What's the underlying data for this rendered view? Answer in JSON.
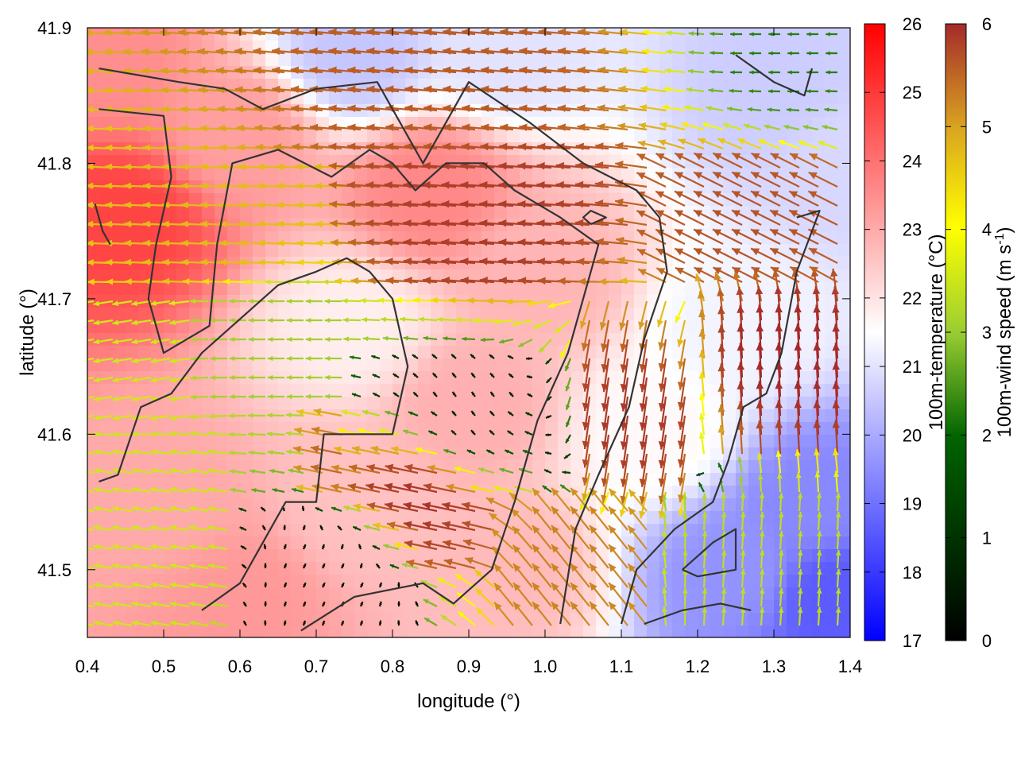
{
  "chart_data": {
    "type": "heatmap",
    "xlabel": "longitude (°)",
    "ylabel": "latitude (°)",
    "xlim": [
      0.4,
      1.4
    ],
    "ylim": [
      41.45,
      41.9
    ],
    "x_ticks": [
      "0.4",
      "0.5",
      "0.6",
      "0.7",
      "0.8",
      "0.9",
      "1.0",
      "1.1",
      "1.2",
      "1.3",
      "1.4"
    ],
    "y_ticks": [
      "41.5",
      "41.6",
      "41.7",
      "41.8",
      "41.9"
    ],
    "grid": false,
    "temperature_colorbar": {
      "label": "100m-temperature (°C)",
      "range": [
        17,
        26
      ],
      "ticks": [
        "17",
        "18",
        "19",
        "20",
        "21",
        "22",
        "23",
        "24",
        "25",
        "26"
      ],
      "colors": [
        "#0000ff",
        "#ffffff",
        "#ff0000"
      ]
    },
    "wind_colorbar": {
      "label_main": "100m-wind speed (m s",
      "label_sup": "-1",
      "label_end": ")",
      "range": [
        0,
        6
      ],
      "ticks": [
        "0",
        "1",
        "2",
        "3",
        "4",
        "5",
        "6"
      ],
      "colors": [
        "#000000",
        "#006400",
        "#9acd32",
        "#ffff00",
        "#daa520",
        "#a52a2a"
      ]
    },
    "temperature_field": [
      {
        "lon": 0.45,
        "lat": 41.76,
        "t": 24.8
      },
      {
        "lon": 0.42,
        "lat": 41.88,
        "t": 23.5
      },
      {
        "lon": 0.6,
        "lat": 41.82,
        "t": 23.2
      },
      {
        "lon": 0.85,
        "lat": 41.78,
        "t": 23.6
      },
      {
        "lon": 1.0,
        "lat": 41.72,
        "t": 22.8
      },
      {
        "lon": 0.9,
        "lat": 41.62,
        "t": 22.9
      },
      {
        "lon": 0.75,
        "lat": 41.55,
        "t": 22.6
      },
      {
        "lon": 0.5,
        "lat": 41.55,
        "t": 23.0
      },
      {
        "lon": 0.6,
        "lat": 41.48,
        "t": 23.3
      },
      {
        "lon": 0.95,
        "lat": 41.5,
        "t": 22.7
      },
      {
        "lon": 1.25,
        "lat": 41.5,
        "t": 19.6
      },
      {
        "lon": 1.35,
        "lat": 41.55,
        "t": 19.4
      },
      {
        "lon": 1.38,
        "lat": 41.48,
        "t": 18.6
      },
      {
        "lon": 1.3,
        "lat": 41.85,
        "t": 20.6
      },
      {
        "lon": 1.38,
        "lat": 41.8,
        "t": 20.8
      },
      {
        "lon": 0.75,
        "lat": 41.88,
        "t": 20.5
      },
      {
        "lon": 0.95,
        "lat": 41.88,
        "t": 21.0
      },
      {
        "lon": 1.25,
        "lat": 41.68,
        "t": 21.3
      },
      {
        "lon": 1.15,
        "lat": 41.6,
        "t": 21.6
      },
      {
        "lon": 0.75,
        "lat": 41.68,
        "t": 21.8
      }
    ],
    "wind_regions": [
      {
        "lon": [
          0.4,
          1.4
        ],
        "lat": [
          41.8,
          41.9
        ],
        "u": -5.5,
        "v": 0.5
      },
      {
        "lon": [
          0.4,
          0.75
        ],
        "lat": [
          41.7,
          41.8
        ],
        "u": -4.5,
        "v": 0.2
      },
      {
        "lon": [
          0.75,
          1.15
        ],
        "lat": [
          41.7,
          41.82
        ],
        "u": -5.8,
        "v": 0.4
      },
      {
        "lon": [
          0.4,
          0.55
        ],
        "lat": [
          41.6,
          41.7
        ],
        "u": -3.0,
        "v": -0.5
      },
      {
        "lon": [
          0.55,
          0.75
        ],
        "lat": [
          41.62,
          41.72
        ],
        "u": -2.5,
        "v": 0.0
      },
      {
        "lon": [
          0.75,
          1.05
        ],
        "lat": [
          41.55,
          41.66
        ],
        "u": -0.2,
        "v": 0.3
      },
      {
        "lon": [
          0.6,
          0.85
        ],
        "lat": [
          41.45,
          41.55
        ],
        "u": 0.1,
        "v": 0.2
      },
      {
        "lon": [
          0.4,
          0.6
        ],
        "lat": [
          41.45,
          41.6
        ],
        "u": -3.0,
        "v": 0.5
      },
      {
        "lon": [
          0.7,
          1.0
        ],
        "lat": [
          41.5,
          41.62
        ],
        "u": -5.8,
        "v": 1.2
      },
      {
        "lon": [
          1.05,
          1.2
        ],
        "lat": [
          41.55,
          41.7
        ],
        "u": -0.8,
        "v": -5.8
      },
      {
        "lon": [
          1.2,
          1.4
        ],
        "lat": [
          41.58,
          41.7
        ],
        "u": -0.3,
        "v": 6.0
      },
      {
        "lon": [
          1.15,
          1.4
        ],
        "lat": [
          41.45,
          41.55
        ],
        "u": 0.2,
        "v": 2.8
      },
      {
        "lon": [
          0.95,
          1.15
        ],
        "lat": [
          41.45,
          41.55
        ],
        "u": -3.2,
        "v": 4.0
      },
      {
        "lon": [
          1.15,
          1.4
        ],
        "lat": [
          41.7,
          41.8
        ],
        "u": -5.0,
        "v": 2.5
      },
      {
        "lon": [
          1.25,
          1.4
        ],
        "lat": [
          41.86,
          41.9
        ],
        "u": -1.5,
        "v": 0.0
      }
    ],
    "topography_contours": [
      [
        [
          0.415,
          41.87
        ],
        [
          0.52,
          41.86
        ],
        [
          0.58,
          41.855
        ],
        [
          0.63,
          41.84
        ],
        [
          0.7,
          41.855
        ],
        [
          0.78,
          41.86
        ],
        [
          0.84,
          41.8
        ],
        [
          0.9,
          41.86
        ],
        [
          0.98,
          41.83
        ],
        [
          1.05,
          41.8
        ],
        [
          1.12,
          41.78
        ],
        [
          1.15,
          41.76
        ],
        [
          1.16,
          41.72
        ],
        [
          1.13,
          41.67
        ],
        [
          1.11,
          41.62
        ],
        [
          1.07,
          41.57
        ],
        [
          1.04,
          41.53
        ],
        [
          1.02,
          41.46
        ]
      ],
      [
        [
          0.415,
          41.84
        ],
        [
          0.5,
          41.835
        ],
        [
          0.51,
          41.79
        ],
        [
          0.49,
          41.74
        ],
        [
          0.48,
          41.7
        ],
        [
          0.5,
          41.66
        ],
        [
          0.56,
          41.68
        ],
        [
          0.57,
          41.74
        ],
        [
          0.59,
          41.8
        ],
        [
          0.65,
          41.81
        ],
        [
          0.72,
          41.79
        ],
        [
          0.77,
          41.81
        ],
        [
          0.8,
          41.8
        ],
        [
          0.83,
          41.78
        ],
        [
          0.87,
          41.8
        ],
        [
          0.92,
          41.8
        ],
        [
          0.96,
          41.78
        ],
        [
          1.02,
          41.76
        ],
        [
          1.07,
          41.74
        ],
        [
          1.05,
          41.7
        ],
        [
          1.03,
          41.66
        ],
        [
          0.99,
          41.61
        ],
        [
          0.96,
          41.55
        ],
        [
          0.93,
          41.5
        ],
        [
          0.88,
          41.475
        ],
        [
          0.84,
          41.49
        ],
        [
          0.75,
          41.48
        ],
        [
          0.68,
          41.455
        ]
      ],
      [
        [
          0.415,
          41.565
        ],
        [
          0.44,
          41.57
        ],
        [
          0.47,
          41.62
        ],
        [
          0.51,
          41.63
        ],
        [
          0.55,
          41.66
        ],
        [
          0.61,
          41.69
        ],
        [
          0.65,
          41.71
        ],
        [
          0.7,
          41.72
        ],
        [
          0.74,
          41.73
        ],
        [
          0.77,
          41.72
        ],
        [
          0.8,
          41.7
        ],
        [
          0.82,
          41.65
        ],
        [
          0.8,
          41.6
        ],
        [
          0.76,
          41.6
        ],
        [
          0.71,
          41.6
        ],
        [
          0.7,
          41.55
        ],
        [
          0.66,
          41.55
        ],
        [
          0.63,
          41.52
        ],
        [
          0.6,
          41.49
        ],
        [
          0.55,
          41.47
        ]
      ],
      [
        [
          1.25,
          41.88
        ],
        [
          1.3,
          41.86
        ],
        [
          1.34,
          41.85
        ],
        [
          1.35,
          41.87
        ]
      ],
      [
        [
          1.33,
          41.76
        ],
        [
          1.36,
          41.765
        ],
        [
          1.33,
          41.72
        ],
        [
          1.31,
          41.66
        ],
        [
          1.29,
          41.63
        ],
        [
          1.26,
          41.62
        ],
        [
          1.24,
          41.58
        ],
        [
          1.22,
          41.55
        ],
        [
          1.17,
          41.53
        ],
        [
          1.12,
          41.5
        ],
        [
          1.1,
          41.46
        ]
      ],
      [
        [
          1.06,
          41.755
        ],
        [
          1.08,
          41.76
        ],
        [
          1.06,
          41.765
        ],
        [
          1.05,
          41.76
        ],
        [
          1.06,
          41.755
        ]
      ],
      [
        [
          1.18,
          41.5
        ],
        [
          1.22,
          41.52
        ],
        [
          1.25,
          41.53
        ],
        [
          1.25,
          41.5
        ],
        [
          1.2,
          41.495
        ],
        [
          1.18,
          41.5
        ]
      ],
      [
        [
          0.41,
          41.77
        ],
        [
          0.42,
          41.75
        ],
        [
          0.43,
          41.74
        ]
      ],
      [
        [
          1.13,
          41.46
        ],
        [
          1.18,
          41.47
        ],
        [
          1.23,
          41.475
        ],
        [
          1.27,
          41.47
        ]
      ]
    ]
  }
}
